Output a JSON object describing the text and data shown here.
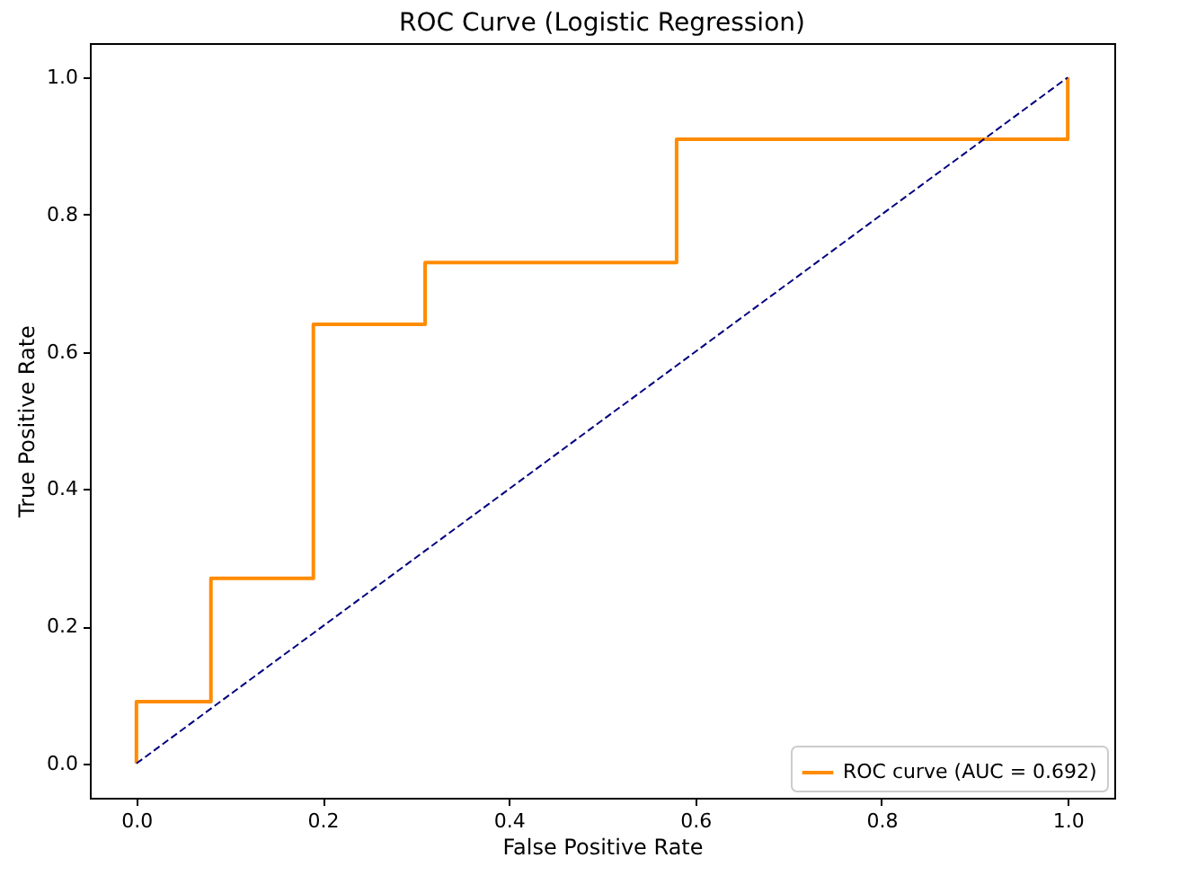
{
  "chart_data": {
    "type": "line",
    "title": "ROC Curve (Logistic Regression)",
    "xlabel": "False Positive Rate",
    "ylabel": "True Positive Rate",
    "series": [
      {
        "name": "ROC curve (AUC = 0.692)",
        "color": "#ff8c00",
        "line_style": "solid",
        "x": [
          0,
          0,
          0.08,
          0.08,
          0.19,
          0.19,
          0.31,
          0.31,
          0.58,
          0.58,
          1,
          1
        ],
        "values": [
          0,
          0.09,
          0.09,
          0.27,
          0.27,
          0.64,
          0.64,
          0.73,
          0.73,
          0.91,
          0.91,
          1
        ]
      },
      {
        "color": "#000080",
        "line_style": "dashed",
        "x": [
          0,
          1
        ],
        "values": [
          0,
          1
        ]
      }
    ],
    "xlim": [
      -0.05,
      1.05
    ],
    "ylim": [
      -0.05,
      1.05
    ],
    "xticks": [
      {
        "value": 0,
        "label": "0.0"
      },
      {
        "value": 0.2,
        "label": "0.2"
      },
      {
        "value": 0.4,
        "label": "0.4"
      },
      {
        "value": 0.6,
        "label": "0.6"
      },
      {
        "value": 0.8,
        "label": "0.8"
      },
      {
        "value": 1,
        "label": "1.0"
      }
    ],
    "yticks": [
      {
        "value": 0,
        "label": "0.0"
      },
      {
        "value": 0.2,
        "label": "0.2"
      },
      {
        "value": 0.4,
        "label": "0.4"
      },
      {
        "value": 0.6,
        "label": "0.6"
      },
      {
        "value": 0.8,
        "label": "0.8"
      },
      {
        "value": 1,
        "label": "1.0"
      }
    ],
    "grid": false,
    "legend": "bottom right",
    "marker": "none"
  }
}
